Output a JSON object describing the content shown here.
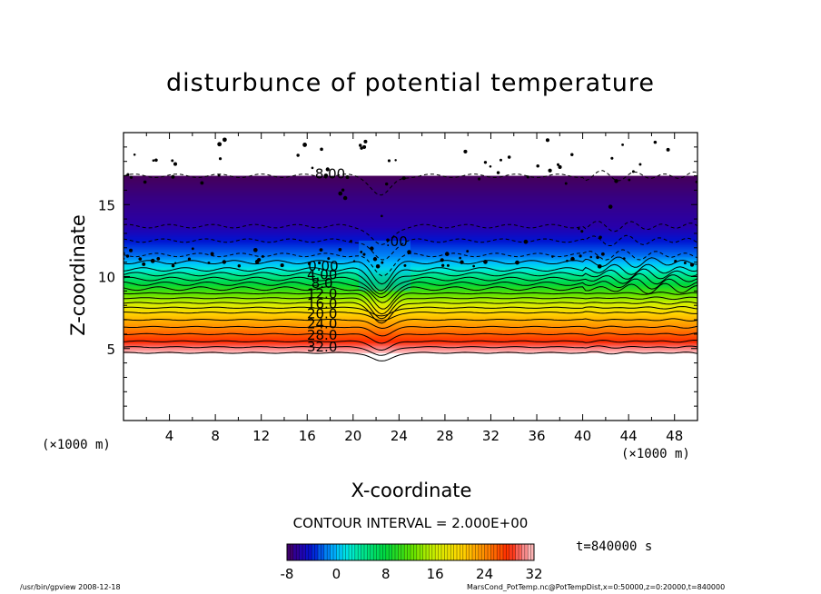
{
  "chart_data": {
    "type": "heatmap",
    "title": "disturbunce of potential temperature",
    "xlabel": "X-coordinate",
    "ylabel": "Z-coordinate",
    "x_unit_label": "(×1000 m)",
    "x_unit_label_right": "(×1000 m)",
    "xlim": [
      0,
      50
    ],
    "ylim": [
      0,
      20
    ],
    "x_ticks": [
      4,
      8,
      12,
      16,
      20,
      24,
      28,
      32,
      36,
      40,
      44,
      48
    ],
    "y_ticks": [
      5,
      10,
      15
    ],
    "contour_labels": [
      "8.00",
      "0.00",
      "4.00",
      "8.0",
      "12.0",
      "16.0",
      "20.0",
      "24.0",
      "28.0",
      "32.0"
    ],
    "contour_interval": "CONTOUR INTERVAL = 2.000E+00",
    "time_label": "t=840000 s",
    "colorbar": {
      "ticks": [
        "-8",
        "0",
        "8",
        "16",
        "24",
        "32"
      ],
      "min": -8,
      "max": 32
    },
    "field_profile": [
      {
        "z": 4.7,
        "value": 32
      },
      {
        "z": 5.5,
        "value": 28
      },
      {
        "z": 6.5,
        "value": 24
      },
      {
        "z": 7.5,
        "value": 20
      },
      {
        "z": 8.5,
        "value": 14
      },
      {
        "z": 9.5,
        "value": 8
      },
      {
        "z": 10.5,
        "value": 2
      },
      {
        "z": 11.5,
        "value": -2
      },
      {
        "z": 13.5,
        "value": -6
      },
      {
        "z": 15.5,
        "value": -7
      },
      {
        "z": 17.0,
        "value": -8
      }
    ],
    "grid": false
  },
  "footer": {
    "left": "/usr/bin/gpview   2008-12-18",
    "right": "MarsCond_PotTemp.nc@PotTempDist,x=0:50000,z=0:20000,t=840000"
  }
}
